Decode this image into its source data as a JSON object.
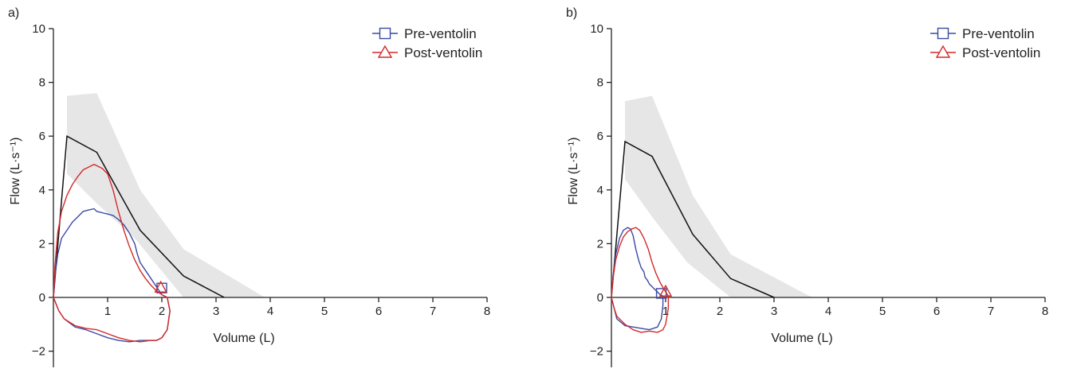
{
  "chart_data": [
    {
      "type": "line",
      "panel_label": "a)",
      "xlabel": "Volume (L)",
      "ylabel": "Flow (L·s⁻¹)",
      "xlim": [
        0,
        8
      ],
      "ylim": [
        -2.6,
        10
      ],
      "xticks": [
        1,
        2,
        3,
        4,
        5,
        6,
        7,
        8
      ],
      "yticks": [
        -2,
        0,
        2,
        4,
        6,
        8,
        10
      ],
      "legend_position": "top-right",
      "colors": {
        "pre": "#3b4aa3",
        "post": "#d42a2a",
        "predicted": "#111111",
        "band": "#e6e6e6"
      },
      "reference_band": {
        "upper": [
          [
            0.25,
            7.5
          ],
          [
            0.8,
            7.6
          ],
          [
            1.6,
            4.0
          ],
          [
            2.4,
            1.8
          ],
          [
            3.9,
            0.0
          ]
        ],
        "lower": [
          [
            2.4,
            0.0
          ],
          [
            1.5,
            2.2
          ],
          [
            0.8,
            3.5
          ],
          [
            0.25,
            4.6
          ]
        ]
      },
      "predicted": {
        "x": [
          0,
          0.25,
          0.8,
          1.6,
          2.4,
          3.15
        ],
        "y": [
          0,
          6.0,
          5.4,
          2.5,
          0.8,
          0
        ]
      },
      "series": [
        {
          "name": "Pre-ventolin",
          "marker": "square",
          "marker_point": [
            2.0,
            0.35
          ],
          "x": [
            0,
            0.03,
            0.08,
            0.15,
            0.25,
            0.35,
            0.45,
            0.55,
            0.65,
            0.75,
            0.8,
            0.9,
            1.0,
            1.1,
            1.2,
            1.3,
            1.4,
            1.5,
            1.55,
            1.6,
            1.7,
            1.8,
            1.9,
            2.0,
            2.1,
            2.15,
            2.1,
            2.0,
            1.9,
            1.8,
            1.6,
            1.4,
            1.2,
            1.0,
            0.8,
            0.6,
            0.4,
            0.2,
            0.1,
            0
          ],
          "y": [
            0,
            0.8,
            1.6,
            2.2,
            2.5,
            2.8,
            3.0,
            3.2,
            3.25,
            3.3,
            3.2,
            3.15,
            3.1,
            3.05,
            2.9,
            2.7,
            2.4,
            2.0,
            1.6,
            1.3,
            1.0,
            0.7,
            0.4,
            0.1,
            0,
            -0.5,
            -1.2,
            -1.5,
            -1.6,
            -1.6,
            -1.6,
            -1.65,
            -1.6,
            -1.5,
            -1.35,
            -1.2,
            -1.1,
            -0.8,
            -0.5,
            0
          ]
        },
        {
          "name": "Post-ventolin",
          "marker": "triangle",
          "marker_point": [
            1.98,
            0.35
          ],
          "x": [
            0,
            0.03,
            0.08,
            0.15,
            0.25,
            0.35,
            0.45,
            0.55,
            0.65,
            0.7,
            0.75,
            0.8,
            0.9,
            1.0,
            1.1,
            1.2,
            1.3,
            1.4,
            1.5,
            1.6,
            1.7,
            1.8,
            1.9,
            2.0,
            2.1,
            2.15,
            2.1,
            2.0,
            1.9,
            1.8,
            1.6,
            1.4,
            1.2,
            1.0,
            0.8,
            0.6,
            0.4,
            0.2,
            0.1,
            0
          ],
          "y": [
            0,
            1.2,
            2.4,
            3.2,
            3.8,
            4.2,
            4.5,
            4.75,
            4.85,
            4.9,
            4.95,
            4.9,
            4.8,
            4.6,
            4.0,
            3.2,
            2.5,
            1.9,
            1.4,
            1.0,
            0.7,
            0.45,
            0.25,
            0.1,
            0,
            -0.5,
            -1.2,
            -1.5,
            -1.6,
            -1.6,
            -1.65,
            -1.6,
            -1.5,
            -1.35,
            -1.2,
            -1.15,
            -1.05,
            -0.8,
            -0.5,
            0
          ]
        }
      ]
    },
    {
      "type": "line",
      "panel_label": "b)",
      "xlabel": "Volume (L)",
      "ylabel": "Flow (L·s⁻¹)",
      "xlim": [
        0,
        8
      ],
      "ylim": [
        -2.6,
        10
      ],
      "xticks": [
        1,
        2,
        3,
        4,
        5,
        6,
        7,
        8
      ],
      "yticks": [
        -2,
        0,
        2,
        4,
        6,
        8,
        10
      ],
      "legend_position": "top-right",
      "colors": {
        "pre": "#3b4aa3",
        "post": "#d42a2a",
        "predicted": "#111111",
        "band": "#e6e6e6"
      },
      "reference_band": {
        "upper": [
          [
            0.25,
            7.3
          ],
          [
            0.75,
            7.5
          ],
          [
            1.5,
            3.8
          ],
          [
            2.2,
            1.6
          ],
          [
            3.7,
            0.0
          ]
        ],
        "lower": [
          [
            2.2,
            0.0
          ],
          [
            1.4,
            1.3
          ],
          [
            0.75,
            3.0
          ],
          [
            0.25,
            4.4
          ]
        ]
      },
      "predicted": {
        "x": [
          0,
          0.25,
          0.75,
          1.5,
          2.2,
          3.0
        ],
        "y": [
          0,
          5.8,
          5.25,
          2.35,
          0.7,
          0
        ]
      },
      "series": [
        {
          "name": "Pre-ventolin",
          "marker": "square",
          "marker_point": [
            0.92,
            0.15
          ],
          "x": [
            0,
            0.03,
            0.08,
            0.15,
            0.22,
            0.3,
            0.35,
            0.4,
            0.45,
            0.5,
            0.55,
            0.6,
            0.62,
            0.66,
            0.7,
            0.75,
            0.8,
            0.85,
            0.9,
            0.95,
            0.95,
            0.92,
            0.85,
            0.7,
            0.55,
            0.4,
            0.25,
            0.1,
            0.05,
            0
          ],
          "y": [
            0,
            0.8,
            1.6,
            2.2,
            2.5,
            2.6,
            2.55,
            2.3,
            1.8,
            1.4,
            1.1,
            0.95,
            0.75,
            0.65,
            0.5,
            0.4,
            0.3,
            0.2,
            0.1,
            0.05,
            -0.3,
            -0.8,
            -1.1,
            -1.2,
            -1.15,
            -1.1,
            -1.05,
            -0.8,
            -0.4,
            0
          ]
        },
        {
          "name": "Post-ventolin",
          "marker": "triangle",
          "marker_point": [
            1.0,
            0.2
          ],
          "x": [
            0,
            0.03,
            0.08,
            0.15,
            0.22,
            0.3,
            0.38,
            0.45,
            0.52,
            0.6,
            0.68,
            0.75,
            0.82,
            0.9,
            0.97,
            1.05,
            1.05,
            1.0,
            0.95,
            0.85,
            0.7,
            0.55,
            0.4,
            0.25,
            0.1,
            0.05,
            0
          ],
          "y": [
            0,
            0.7,
            1.4,
            1.9,
            2.25,
            2.45,
            2.55,
            2.6,
            2.5,
            2.2,
            1.8,
            1.3,
            0.9,
            0.55,
            0.3,
            0.05,
            -0.4,
            -1.0,
            -1.2,
            -1.3,
            -1.25,
            -1.3,
            -1.2,
            -1.0,
            -0.7,
            -0.4,
            0
          ]
        }
      ]
    }
  ]
}
